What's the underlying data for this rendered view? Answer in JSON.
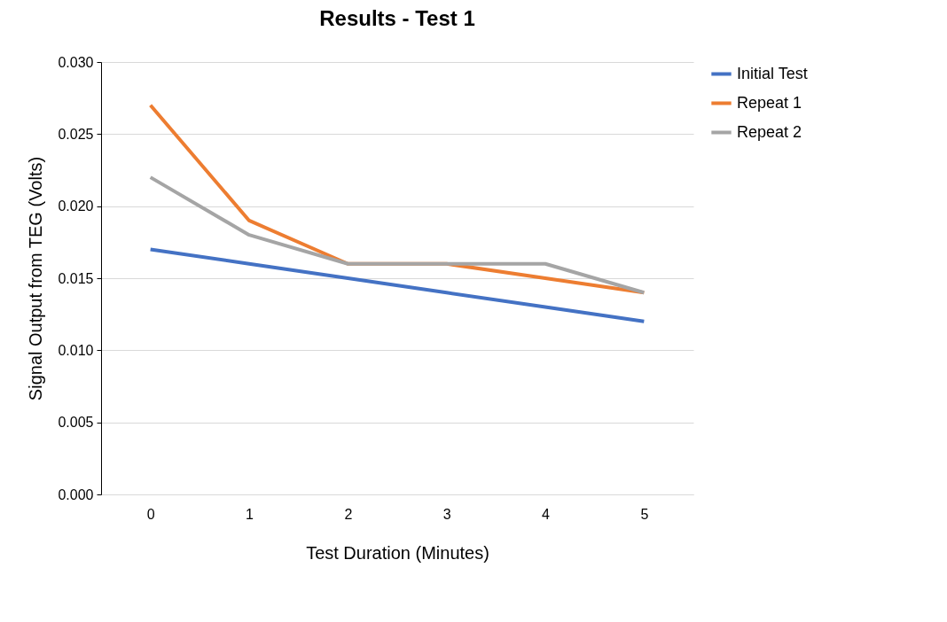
{
  "chart_data": {
    "type": "line",
    "title": "Results - Test 1",
    "xlabel": "Test Duration (Minutes)",
    "ylabel": "Signal Output from TEG (Volts)",
    "categories": [
      "0",
      "1",
      "2",
      "3",
      "4",
      "5"
    ],
    "series": [
      {
        "name": "Initial Test",
        "color": "#4472c4",
        "values": [
          0.017,
          0.016,
          0.015,
          0.014,
          0.013,
          0.012
        ]
      },
      {
        "name": "Repeat 1",
        "color": "#ed7d31",
        "values": [
          0.027,
          0.019,
          0.016,
          0.016,
          0.015,
          0.014
        ]
      },
      {
        "name": "Repeat 2",
        "color": "#a5a5a5",
        "values": [
          0.022,
          0.018,
          0.016,
          0.016,
          0.016,
          0.014
        ]
      }
    ],
    "ylim": [
      0,
      0.03
    ],
    "yticks": [
      {
        "value": 0,
        "label": "0.000"
      },
      {
        "value": 0.005,
        "label": "0.005"
      },
      {
        "value": 0.01,
        "label": "0.010"
      },
      {
        "value": 0.015,
        "label": "0.015"
      },
      {
        "value": 0.02,
        "label": "0.020"
      },
      {
        "value": 0.025,
        "label": "0.025"
      },
      {
        "value": 0.03,
        "label": "0.030"
      }
    ],
    "grid": "y",
    "legend": "right",
    "marker": "none",
    "line_style": "solid"
  }
}
